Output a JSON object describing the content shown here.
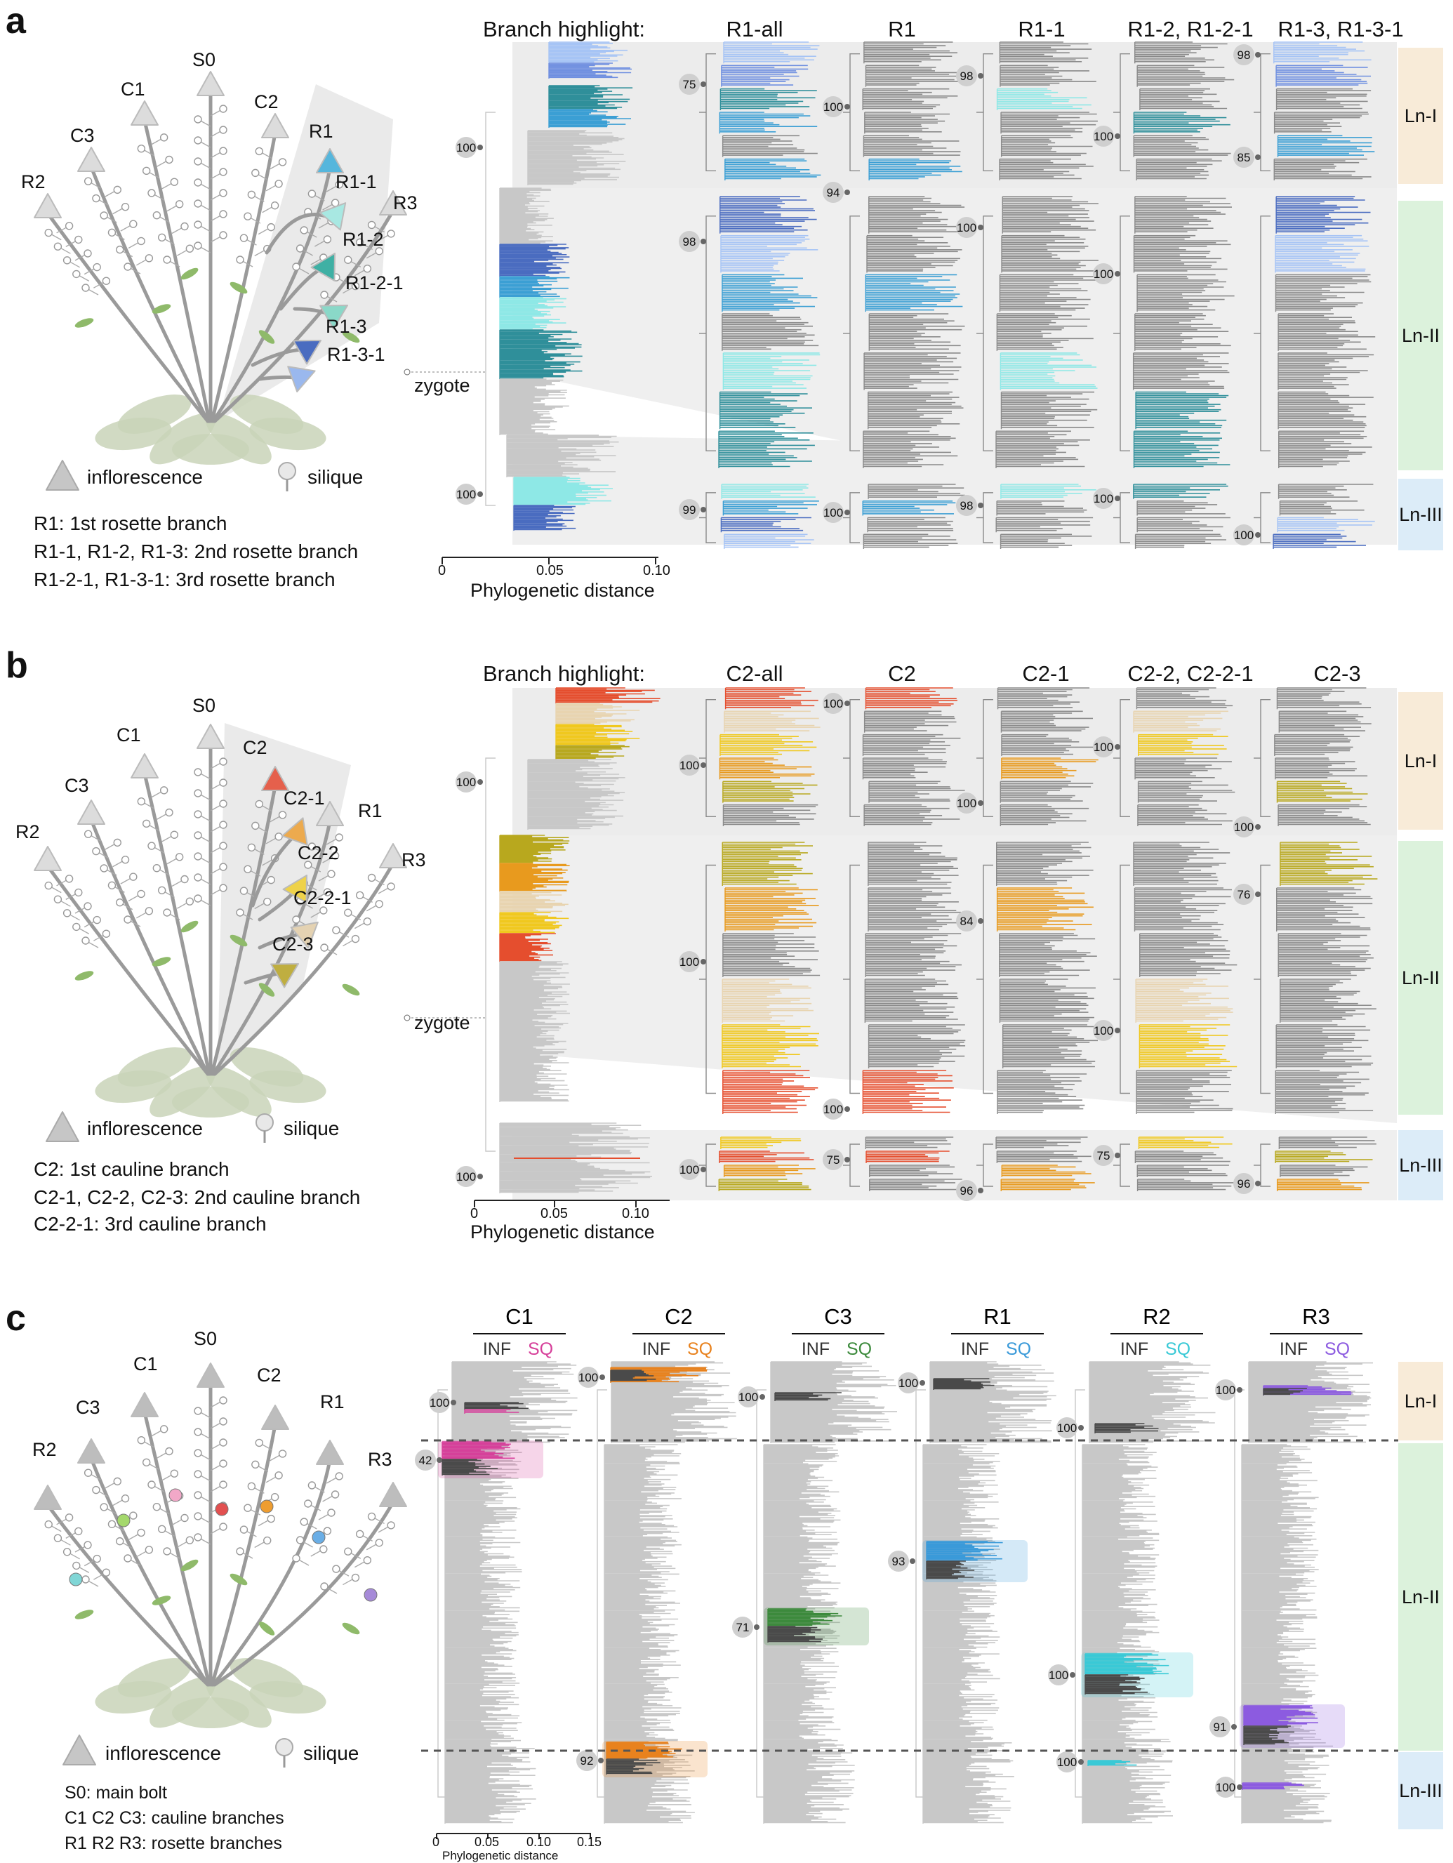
{
  "panels": {
    "a": {
      "letter": "a",
      "branch_highlight_label": "Branch highlight:",
      "columns": [
        "R1-all",
        "R1",
        "R1-1",
        "R1-2, R1-2-1",
        "R1-3, R1-3-1"
      ],
      "plant_labels": [
        "S0",
        "C1",
        "C2",
        "C3",
        "R1",
        "R2",
        "R3",
        "R1-1",
        "R1-2",
        "R1-2-1",
        "R1-3",
        "R1-3-1"
      ],
      "legend": {
        "inflorescence": "inflorescence",
        "silique": "silique"
      },
      "notes": [
        "R1: 1st rosette branch",
        "R1-1, R1-2, R1-3: 2nd rosette branch",
        "R1-2-1, R1-3-1: 3rd rosette branch"
      ],
      "zygote": "zygote",
      "axis": {
        "ticks": [
          "0",
          "0.05",
          "0.10"
        ],
        "label": "Phylogenetic distance"
      },
      "lineages": [
        "Ln-I",
        "Ln-II",
        "Ln-III"
      ],
      "bootstrap": {
        "overview": [
          "100",
          "100"
        ],
        "cols": [
          [
            "75",
            "98",
            "99"
          ],
          [
            "100",
            "94",
            "100"
          ],
          [
            "98",
            "100",
            "98"
          ],
          [
            "100",
            "100",
            "100"
          ],
          [
            "98",
            "85",
            "100"
          ]
        ]
      }
    },
    "b": {
      "letter": "b",
      "branch_highlight_label": "Branch highlight:",
      "columns": [
        "C2-all",
        "C2",
        "C2-1",
        "C2-2, C2-2-1",
        "C2-3"
      ],
      "plant_labels": [
        "S0",
        "C1",
        "C2",
        "C3",
        "R1",
        "R2",
        "R3",
        "C2-1",
        "C2-2",
        "C2-2-1",
        "C2-3"
      ],
      "legend": {
        "inflorescence": "inflorescence",
        "silique": "silique"
      },
      "notes": [
        "C2: 1st cauline branch",
        "C2-1, C2-2, C2-3: 2nd cauline branch",
        "C2-2-1: 3rd cauline branch"
      ],
      "zygote": "zygote",
      "axis": {
        "ticks": [
          "0",
          "0.05",
          "0.10"
        ],
        "label": "Phylogenetic distance"
      },
      "lineages": [
        "Ln-I",
        "Ln-II",
        "Ln-III"
      ],
      "bootstrap": {
        "overview": [
          "100",
          "100"
        ],
        "cols": [
          [
            "100",
            "100",
            "100"
          ],
          [
            "100",
            "100",
            "75"
          ],
          [
            "100",
            "84",
            "96"
          ],
          [
            "100",
            "100",
            "75"
          ],
          [
            "100",
            "76",
            "96"
          ]
        ]
      }
    },
    "c": {
      "letter": "c",
      "columns": [
        {
          "name": "C1",
          "inf": "INF",
          "sq": "SQ",
          "color": "#d6409a",
          "bootstraps": [
            "100",
            "42"
          ]
        },
        {
          "name": "C2",
          "inf": "INF",
          "sq": "SQ",
          "color": "#e8821e",
          "bootstraps": [
            "100",
            "92"
          ]
        },
        {
          "name": "C3",
          "inf": "INF",
          "sq": "SQ",
          "color": "#3c8a3c",
          "bootstraps": [
            "100",
            "71"
          ]
        },
        {
          "name": "R1",
          "inf": "INF",
          "sq": "SQ",
          "color": "#3a9ad9",
          "bootstraps": [
            "100",
            "93"
          ]
        },
        {
          "name": "R2",
          "inf": "INF",
          "sq": "SQ",
          "color": "#39c9d6",
          "bootstraps": [
            "100",
            "100",
            "100"
          ]
        },
        {
          "name": "R3",
          "inf": "INF",
          "sq": "SQ",
          "color": "#8c5be0",
          "bootstraps": [
            "100",
            "91",
            "100"
          ]
        }
      ],
      "plant_labels": [
        "S0",
        "C1",
        "C2",
        "C3",
        "R1",
        "R2",
        "R3"
      ],
      "legend": {
        "inflorescence": "inflorescence",
        "silique": "silique"
      },
      "notes": [
        "S0: main bolt",
        "C1 C2 C3: cauline branches",
        "R1 R2 R3: rosette branches"
      ],
      "axis": {
        "ticks": [
          "0",
          "0.05",
          "0.10",
          "0.15"
        ],
        "label": "Phylogenetic distance"
      },
      "lineages": [
        "Ln-I",
        "Ln-II",
        "Ln-III"
      ],
      "extra_bootstrap": [
        "100"
      ]
    }
  },
  "colors": {
    "ln1": "#f8ebd8",
    "ln2": "#dcf2dc",
    "ln3": "#dcecf8",
    "gray_tree": "#8a8a8a",
    "light_tree": "#c8c8c8",
    "dark_tree": "#4a4a4a",
    "a_series": [
      "#6f8fe0",
      "#a6c4f5",
      "#8ee8e6",
      "#4fb8b0",
      "#3b9fd4",
      "#2f8f9a",
      "#4a6cc0"
    ],
    "b_series": [
      "#e54e2e",
      "#e8d4b0",
      "#f0c81e",
      "#e89a1e",
      "#b8a81e"
    ]
  }
}
